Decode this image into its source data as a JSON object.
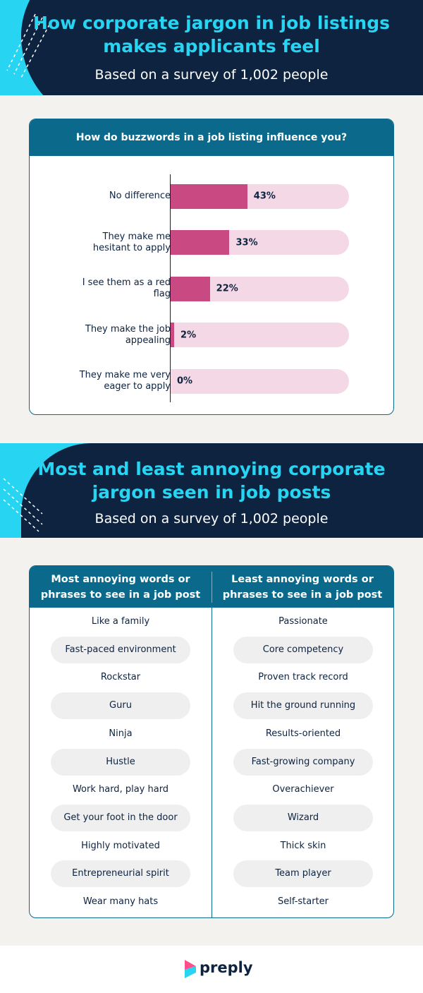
{
  "header": {
    "title": "How corporate jargon in job listings makes applicants feel",
    "subtitle": "Based on a survey of 1,002 people"
  },
  "chart_data": {
    "type": "bar",
    "orientation": "horizontal",
    "title": "How do buzzwords in a job listing influence you?",
    "categories": [
      "No difference",
      "They make me hesitant to apply",
      "I see them as a red flag",
      "They make the job appealing",
      "They make me very eager to apply"
    ],
    "values": [
      43,
      33,
      22,
      2,
      0
    ],
    "value_labels": [
      "43%",
      "33%",
      "22%",
      "2%",
      "0%"
    ],
    "xlim": [
      0,
      100
    ],
    "color": "#c94a82",
    "track_color": "#f4d8e5"
  },
  "header2": {
    "title": "Most and least annoying corporate jargon seen in job posts",
    "subtitle": "Based on a survey of 1,002 people"
  },
  "table": {
    "columns": [
      "Most annoying words or phrases to see in a job post",
      "Least annoying words or phrases to see in a job post"
    ],
    "rows": [
      [
        "Like a family",
        "Passionate"
      ],
      [
        "Fast-paced environment",
        "Core competency"
      ],
      [
        "Rockstar",
        "Proven track record"
      ],
      [
        "Guru",
        "Hit the ground running"
      ],
      [
        "Ninja",
        "Results-oriented"
      ],
      [
        "Hustle",
        "Fast-growing company"
      ],
      [
        "Work hard, play hard",
        "Overachiever"
      ],
      [
        "Get your foot in the door",
        "Wizard"
      ],
      [
        "Highly motivated",
        "Thick skin"
      ],
      [
        "Entrepreneurial spirit",
        "Team player"
      ],
      [
        "Wear many hats",
        "Self-starter"
      ]
    ]
  },
  "footer": {
    "brand": "preply"
  }
}
